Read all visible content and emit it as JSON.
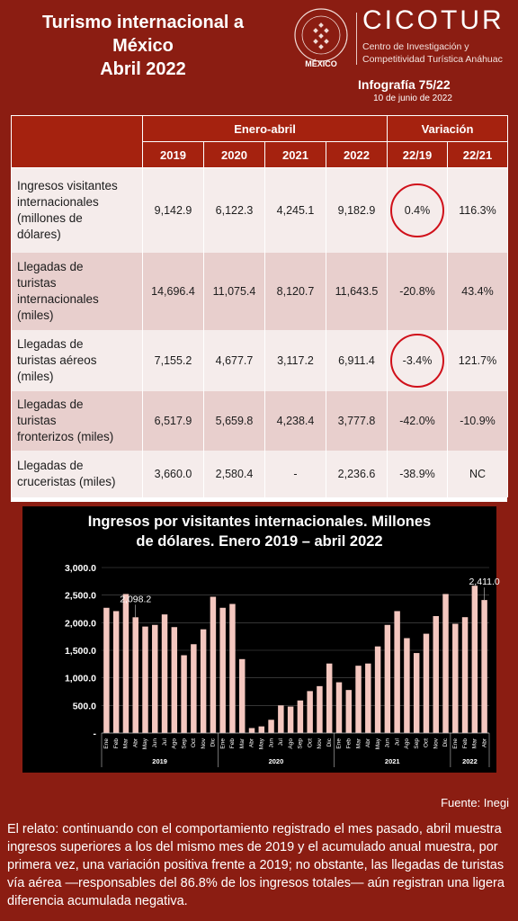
{
  "header": {
    "title_lines": [
      "Turismo internacional a",
      "México",
      "Abril 2022"
    ],
    "seal_label": "MÉXICO",
    "brand_name": "CICOTUR",
    "brand_sub1": "Centro de Investigación y",
    "brand_sub2": "Competitividad Turística Anáhuac",
    "infografia": "Infografía 75/22",
    "date": "10 de junio de 2022"
  },
  "table": {
    "group_headers": [
      "Enero-abril",
      "Variación"
    ],
    "columns": [
      "2019",
      "2020",
      "2021",
      "2022",
      "22/19",
      "22/21"
    ],
    "rows": [
      {
        "label_lines": [
          "Ingresos visitantes",
          "internacionales",
          "(millones de",
          "dólares)"
        ],
        "values": [
          "9,142.9",
          "6,122.3",
          "4,245.1",
          "9,182.9",
          "0.4%",
          "116.3%"
        ],
        "highlight": true
      },
      {
        "label_lines": [
          "Llegadas de",
          "turistas",
          "internacionales",
          "(miles)"
        ],
        "values": [
          "14,696.4",
          "11,075.4",
          "8,120.7",
          "11,643.5",
          "-20.8%",
          "43.4%"
        ],
        "highlight": false
      },
      {
        "label_lines": [
          "Llegadas de",
          "turistas aéreos",
          "(miles)"
        ],
        "values": [
          "7,155.2",
          "4,677.7",
          "3,117.2",
          "6,911.4",
          "-3.4%",
          "121.7%"
        ],
        "highlight": true
      },
      {
        "label_lines": [
          "Llegadas de",
          "turistas",
          "fronterizos (miles)"
        ],
        "values": [
          "6,517.9",
          "5,659.8",
          "4,238.4",
          "3,777.8",
          "-42.0%",
          "-10.9%"
        ],
        "highlight": false
      },
      {
        "label_lines": [
          "Llegadas de",
          "cruceristas (miles)"
        ],
        "values": [
          "3,660.0",
          "2,580.4",
          "-",
          "2,236.6",
          "-38.9%",
          "NC"
        ],
        "highlight": false
      }
    ]
  },
  "chart_data": {
    "type": "bar",
    "title": "Ingresos por visitantes internacionales. Millones de dólares. Enero 2019 – abril 2022",
    "title_lines": [
      "Ingresos por visitantes internacionales. Millones",
      "de dólares. Enero 2019 – abril 2022"
    ],
    "categories": [
      "Ene",
      "Feb",
      "Mar",
      "Abr",
      "May",
      "Jun",
      "Jul",
      "Ago",
      "Sep",
      "Oct",
      "Nov",
      "Dic",
      "Ene",
      "Feb",
      "Mar",
      "Abr",
      "May",
      "Jun",
      "Jul",
      "Ago",
      "Sep",
      "Oct",
      "Nov",
      "Dic",
      "Ene",
      "Feb",
      "Mar",
      "Abr",
      "May",
      "Jun",
      "Jul",
      "Ago",
      "Sep",
      "Oct",
      "Nov",
      "Dic",
      "Ene",
      "Feb",
      "Mar",
      "Abr"
    ],
    "year_groups": [
      {
        "label": "2019",
        "start": 0,
        "count": 12
      },
      {
        "label": "2020",
        "start": 12,
        "count": 12
      },
      {
        "label": "2021",
        "start": 24,
        "count": 12
      },
      {
        "label": "2022",
        "start": 36,
        "count": 4
      }
    ],
    "values": [
      2270,
      2210,
      2520,
      2098.2,
      1930,
      1960,
      2150,
      1920,
      1410,
      1610,
      1880,
      2470,
      2270,
      2340,
      1340,
      90,
      120,
      240,
      500,
      480,
      590,
      760,
      850,
      1260,
      920,
      780,
      1220,
      1260,
      1570,
      1960,
      2210,
      1720,
      1450,
      1800,
      2120,
      2520,
      1980,
      2100,
      2670,
      2411.0
    ],
    "data_labels": [
      {
        "index": 3,
        "text": "2,098.2"
      },
      {
        "index": 39,
        "text": "2,411.0"
      }
    ],
    "yticks": [
      "-",
      "500.0",
      "1,000.0",
      "1,500.0",
      "2,000.0",
      "2,500.0",
      "3,000.0"
    ],
    "ylim": [
      0,
      3000
    ],
    "bar_color": "#f4c7bf"
  },
  "footer": {
    "source": "Fuente: Inegi",
    "narrative": "El relato: continuando con el comportamiento registrado el mes pasado, abril muestra ingresos superiores a los del mismo mes de 2019 y el acumulado anual muestra, por primera vez, una variación positiva frente a 2019; no obstante, las llegadas de turistas vía aérea —responsables del 86.8% de los ingresos totales— aún registran una ligera diferencia acumulada negativa."
  }
}
